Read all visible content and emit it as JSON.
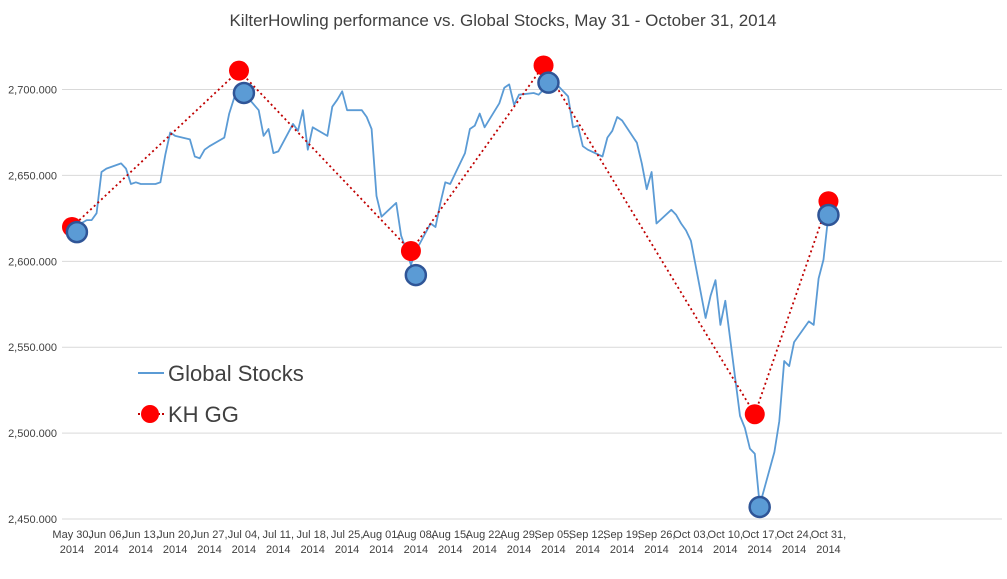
{
  "chart_data": {
    "type": "line",
    "title": "KilterHowling performance vs. Global Stocks, May 31 - October 31, 2014",
    "xlabel": "",
    "ylabel": "",
    "ylim": [
      2450,
      2730
    ],
    "yticks": [
      "2,450.000",
      "2,500.000",
      "2,550.000",
      "2,600.000",
      "2,650.000",
      "2,700.000"
    ],
    "ytick_values": [
      2450,
      2500,
      2550,
      2600,
      2650,
      2700
    ],
    "x_tick_labels": [
      [
        "May 30,",
        "2014"
      ],
      [
        "Jun 06,",
        "2014"
      ],
      [
        "Jun 13,",
        "2014"
      ],
      [
        "Jun 20,",
        "2014"
      ],
      [
        "Jun 27,",
        "2014"
      ],
      [
        "Jul 04,",
        "2014"
      ],
      [
        "Jul 11,",
        "2014"
      ],
      [
        "Jul 18,",
        "2014"
      ],
      [
        "Jul 25,",
        "2014"
      ],
      [
        "Aug 01,",
        "2014"
      ],
      [
        "Aug 08,",
        "2014"
      ],
      [
        "Aug 15,",
        "2014"
      ],
      [
        "Aug 22,",
        "2014"
      ],
      [
        "Aug 29,",
        "2014"
      ],
      [
        "Sep 05,",
        "2014"
      ],
      [
        "Sep 12,",
        "2014"
      ],
      [
        "Sep 19,",
        "2014"
      ],
      [
        "Sep 26,",
        "2014"
      ],
      [
        "Oct 03,",
        "2014"
      ],
      [
        "Oct 10,",
        "2014"
      ],
      [
        "Oct 17,",
        "2014"
      ],
      [
        "Oct 24,",
        "2014"
      ],
      [
        "Oct 31,",
        "2014"
      ]
    ],
    "legend_position": "left",
    "gridlines": true,
    "colors": {
      "global_stocks": "#5b9bd5",
      "global_markers": "#5b9bd5",
      "global_marker_edge": "#2f5597",
      "kh": "#c00000",
      "kh_markers": "#ff0000",
      "grid": "#d9d9d9"
    },
    "series": [
      {
        "name": "Global Stocks",
        "style": "solid-line",
        "points": [
          [
            "2014-05-30",
            2619
          ],
          [
            "2014-06-02",
            2624
          ],
          [
            "2014-06-03",
            2624
          ],
          [
            "2014-06-04",
            2628
          ],
          [
            "2014-06-05",
            2652
          ],
          [
            "2014-06-06",
            2654
          ],
          [
            "2014-06-09",
            2657
          ],
          [
            "2014-06-10",
            2654
          ],
          [
            "2014-06-11",
            2645
          ],
          [
            "2014-06-12",
            2646
          ],
          [
            "2014-06-13",
            2645
          ],
          [
            "2014-06-16",
            2645
          ],
          [
            "2014-06-17",
            2646
          ],
          [
            "2014-06-18",
            2662
          ],
          [
            "2014-06-19",
            2675
          ],
          [
            "2014-06-20",
            2673
          ],
          [
            "2014-06-23",
            2671
          ],
          [
            "2014-06-24",
            2661
          ],
          [
            "2014-06-25",
            2660
          ],
          [
            "2014-06-26",
            2665
          ],
          [
            "2014-06-27",
            2667
          ],
          [
            "2014-06-30",
            2672
          ],
          [
            "2014-07-01",
            2686
          ],
          [
            "2014-07-02",
            2695
          ],
          [
            "2014-07-03",
            2698
          ],
          [
            "2014-07-04",
            2698
          ],
          [
            "2014-07-07",
            2688
          ],
          [
            "2014-07-08",
            2673
          ],
          [
            "2014-07-09",
            2677
          ],
          [
            "2014-07-10",
            2663
          ],
          [
            "2014-07-11",
            2664
          ],
          [
            "2014-07-14",
            2680
          ],
          [
            "2014-07-15",
            2676
          ],
          [
            "2014-07-16",
            2688
          ],
          [
            "2014-07-17",
            2665
          ],
          [
            "2014-07-18",
            2678
          ],
          [
            "2014-07-21",
            2673
          ],
          [
            "2014-07-22",
            2690
          ],
          [
            "2014-07-23",
            2694
          ],
          [
            "2014-07-24",
            2699
          ],
          [
            "2014-07-25",
            2688
          ],
          [
            "2014-07-28",
            2688
          ],
          [
            "2014-07-29",
            2684
          ],
          [
            "2014-07-30",
            2677
          ],
          [
            "2014-07-31",
            2638
          ],
          [
            "2014-08-01",
            2626
          ],
          [
            "2014-08-04",
            2634
          ],
          [
            "2014-08-05",
            2615
          ],
          [
            "2014-08-06",
            2607
          ],
          [
            "2014-08-07",
            2598
          ],
          [
            "2014-08-08",
            2606
          ],
          [
            "2014-08-11",
            2622
          ],
          [
            "2014-08-12",
            2620
          ],
          [
            "2014-08-13",
            2634
          ],
          [
            "2014-08-14",
            2646
          ],
          [
            "2014-08-15",
            2645
          ],
          [
            "2014-08-18",
            2663
          ],
          [
            "2014-08-19",
            2677
          ],
          [
            "2014-08-20",
            2679
          ],
          [
            "2014-08-21",
            2686
          ],
          [
            "2014-08-22",
            2678
          ],
          [
            "2014-08-25",
            2692
          ],
          [
            "2014-08-26",
            2701
          ],
          [
            "2014-08-27",
            2703
          ],
          [
            "2014-08-28",
            2691
          ],
          [
            "2014-08-29",
            2697
          ],
          [
            "2014-09-01",
            2698
          ],
          [
            "2014-09-02",
            2697
          ],
          [
            "2014-09-03",
            2700
          ],
          [
            "2014-09-04",
            2703
          ],
          [
            "2014-09-05",
            2705
          ],
          [
            "2014-09-08",
            2696
          ],
          [
            "2014-09-09",
            2678
          ],
          [
            "2014-09-10",
            2679
          ],
          [
            "2014-09-11",
            2667
          ],
          [
            "2014-09-12",
            2665
          ],
          [
            "2014-09-15",
            2661
          ],
          [
            "2014-09-16",
            2672
          ],
          [
            "2014-09-17",
            2676
          ],
          [
            "2014-09-18",
            2684
          ],
          [
            "2014-09-19",
            2682
          ],
          [
            "2014-09-22",
            2669
          ],
          [
            "2014-09-23",
            2657
          ],
          [
            "2014-09-24",
            2642
          ],
          [
            "2014-09-25",
            2652
          ],
          [
            "2014-09-26",
            2622
          ],
          [
            "2014-09-29",
            2630
          ],
          [
            "2014-09-30",
            2627
          ],
          [
            "2014-10-01",
            2622
          ],
          [
            "2014-10-02",
            2618
          ],
          [
            "2014-10-03",
            2612
          ],
          [
            "2014-10-06",
            2567
          ],
          [
            "2014-10-07",
            2580
          ],
          [
            "2014-10-08",
            2589
          ],
          [
            "2014-10-09",
            2563
          ],
          [
            "2014-10-10",
            2577
          ],
          [
            "2014-10-13",
            2510
          ],
          [
            "2014-10-14",
            2503
          ],
          [
            "2014-10-15",
            2491
          ],
          [
            "2014-10-16",
            2488
          ],
          [
            "2014-10-17",
            2458
          ],
          [
            "2014-10-20",
            2489
          ],
          [
            "2014-10-21",
            2507
          ],
          [
            "2014-10-22",
            2542
          ],
          [
            "2014-10-23",
            2539
          ],
          [
            "2014-10-24",
            2553
          ],
          [
            "2014-10-27",
            2565
          ],
          [
            "2014-10-28",
            2563
          ],
          [
            "2014-10-29",
            2590
          ],
          [
            "2014-10-30",
            2601
          ],
          [
            "2014-10-31",
            2627
          ]
        ],
        "markers": [
          [
            "2014-05-31",
            2617
          ],
          [
            "2014-07-04",
            2698
          ],
          [
            "2014-08-08",
            2592
          ],
          [
            "2014-09-04",
            2704
          ],
          [
            "2014-10-17",
            2457
          ],
          [
            "2014-10-31",
            2627
          ]
        ]
      },
      {
        "name": "KH GG",
        "style": "dotted-line-with-markers",
        "points": [
          [
            "2014-05-30",
            2620
          ],
          [
            "2014-07-03",
            2711
          ],
          [
            "2014-08-07",
            2606
          ],
          [
            "2014-09-03",
            2714
          ],
          [
            "2014-10-16",
            2511
          ],
          [
            "2014-10-31",
            2635
          ]
        ]
      }
    ]
  }
}
